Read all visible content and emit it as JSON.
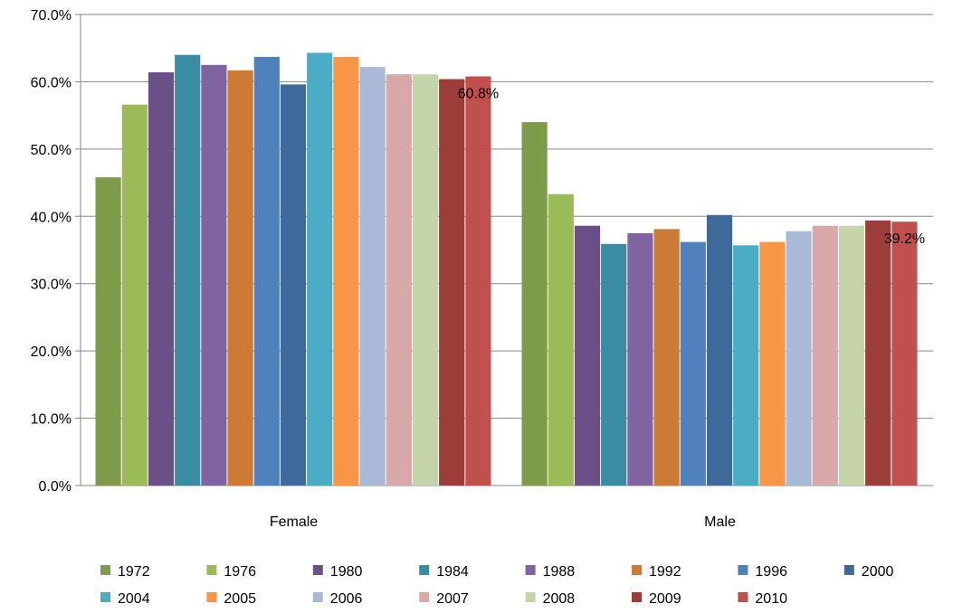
{
  "chart_data": {
    "type": "bar",
    "categories": [
      "Female",
      "Male"
    ],
    "series": [
      {
        "name": "1972",
        "color": "#7e9b4a",
        "values": [
          45.8,
          54.0
        ]
      },
      {
        "name": "1976",
        "color": "#9bbb59",
        "values": [
          56.6,
          43.3
        ]
      },
      {
        "name": "1980",
        "color": "#6b5087",
        "values": [
          61.4,
          38.6
        ]
      },
      {
        "name": "1984",
        "color": "#3a8ca2",
        "values": [
          64.0,
          35.9
        ]
      },
      {
        "name": "1988",
        "color": "#8064a2",
        "values": [
          62.5,
          37.5
        ]
      },
      {
        "name": "1992",
        "color": "#cc7a35",
        "values": [
          61.7,
          38.1
        ]
      },
      {
        "name": "1996",
        "color": "#4f81bd",
        "values": [
          63.7,
          36.2
        ]
      },
      {
        "name": "2000",
        "color": "#3e6a9b",
        "values": [
          59.6,
          40.2
        ]
      },
      {
        "name": "2004",
        "color": "#4bacc6",
        "values": [
          64.3,
          35.7
        ]
      },
      {
        "name": "2005",
        "color": "#f79646",
        "values": [
          63.7,
          36.2
        ]
      },
      {
        "name": "2006",
        "color": "#a9b9d8",
        "values": [
          62.2,
          37.8
        ]
      },
      {
        "name": "2007",
        "color": "#d9a9a9",
        "values": [
          61.1,
          38.6
        ]
      },
      {
        "name": "2008",
        "color": "#c4d6a9",
        "values": [
          61.1,
          38.6
        ]
      },
      {
        "name": "2009",
        "color": "#9c3d3a",
        "values": [
          60.4,
          39.4
        ]
      },
      {
        "name": "2010",
        "color": "#c0504d",
        "values": [
          60.8,
          39.2
        ]
      }
    ],
    "annotations": [
      {
        "series": "2010",
        "category": "Female",
        "text": "60.8%"
      },
      {
        "series": "2010",
        "category": "Male",
        "text": "39.2%"
      }
    ],
    "y_ticks": [
      "0.0%",
      "10.0%",
      "20.0%",
      "30.0%",
      "40.0%",
      "50.0%",
      "60.0%",
      "70.0%"
    ],
    "ylim": [
      0,
      70
    ],
    "grid": true,
    "legend_position": "bottom"
  }
}
